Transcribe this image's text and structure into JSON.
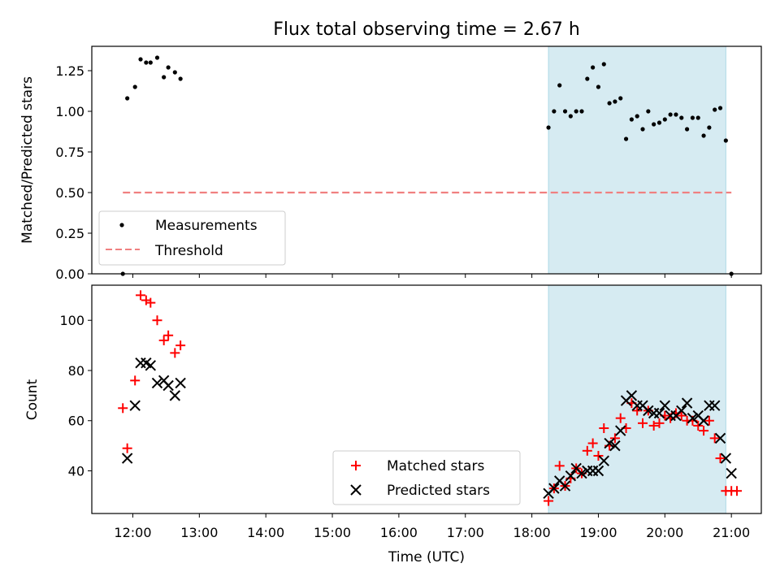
{
  "figure": {
    "title": "Flux total observing time = 2.67 h",
    "xlabel": "Time (UTC)"
  },
  "x_ticks": [
    "12:00",
    "13:00",
    "14:00",
    "15:00",
    "16:00",
    "17:00",
    "18:00",
    "19:00",
    "20:00",
    "21:00"
  ],
  "chart_data": [
    {
      "type": "scatter",
      "panel": "top",
      "ylabel": "Matched/Predicted stars",
      "xlim": [
        "11:23",
        "21:27"
      ],
      "ylim": [
        0,
        1.4
      ],
      "y_ticks": [
        "0.00",
        "0.25",
        "0.50",
        "0.75",
        "1.00",
        "1.25"
      ],
      "shaded_region": {
        "x": [
          "18:15",
          "20:55"
        ],
        "color": "#add8e6"
      },
      "legend": {
        "location": "lower-left"
      },
      "series": [
        {
          "name": "Measurements",
          "marker": "dot",
          "color": "#000000",
          "x": [
            "11:51",
            "11:55",
            "12:02",
            "12:07",
            "12:12",
            "12:16",
            "12:22",
            "12:28",
            "12:32",
            "12:38",
            "12:43",
            "18:15",
            "18:20",
            "18:25",
            "18:30",
            "18:35",
            "18:40",
            "18:45",
            "18:50",
            "18:55",
            "19:00",
            "19:05",
            "19:10",
            "19:15",
            "19:20",
            "19:25",
            "19:30",
            "19:35",
            "19:40",
            "19:45",
            "19:50",
            "19:55",
            "20:00",
            "20:05",
            "20:10",
            "20:15",
            "20:20",
            "20:25",
            "20:30",
            "20:35",
            "20:40",
            "20:45",
            "20:50",
            "20:55",
            "21:00"
          ],
          "y": [
            0.0,
            1.08,
            1.15,
            1.32,
            1.3,
            1.3,
            1.33,
            1.21,
            1.27,
            1.24,
            1.2,
            0.9,
            1.0,
            1.16,
            1.0,
            0.97,
            1.0,
            1.0,
            1.2,
            1.27,
            1.15,
            1.29,
            1.05,
            1.06,
            1.08,
            0.83,
            0.95,
            0.97,
            0.89,
            1.0,
            0.92,
            0.93,
            0.95,
            0.98,
            0.98,
            0.96,
            0.89,
            0.96,
            0.96,
            0.85,
            0.9,
            1.01,
            1.02,
            0.82,
            0.0
          ]
        },
        {
          "name": "Threshold",
          "marker": "dashed-line",
          "color": "#f08080",
          "x": [
            "11:51",
            "21:00"
          ],
          "y": [
            0.5,
            0.5
          ]
        }
      ]
    },
    {
      "type": "scatter",
      "panel": "bottom",
      "ylabel": "Count",
      "xlim": [
        "11:23",
        "21:27"
      ],
      "ylim": [
        23,
        114
      ],
      "y_ticks": [
        "40",
        "60",
        "80",
        "100"
      ],
      "shaded_region": {
        "x": [
          "18:15",
          "20:55"
        ],
        "color": "#add8e6"
      },
      "legend": {
        "location": "lower-center"
      },
      "series": [
        {
          "name": "Matched stars",
          "marker": "plus",
          "color": "#ff0000",
          "x": [
            "11:51",
            "11:55",
            "12:02",
            "12:07",
            "12:12",
            "12:16",
            "12:22",
            "12:28",
            "12:32",
            "12:38",
            "12:43",
            "18:15",
            "18:20",
            "18:25",
            "18:30",
            "18:35",
            "18:40",
            "18:45",
            "18:50",
            "18:55",
            "19:00",
            "19:05",
            "19:10",
            "19:15",
            "19:20",
            "19:25",
            "19:30",
            "19:35",
            "19:40",
            "19:45",
            "19:50",
            "19:55",
            "20:00",
            "20:05",
            "20:10",
            "20:15",
            "20:20",
            "20:25",
            "20:30",
            "20:35",
            "20:40",
            "20:45",
            "20:50",
            "20:55",
            "21:00",
            "21:05"
          ],
          "y": [
            65,
            49,
            76,
            110,
            108,
            107,
            100,
            92,
            94,
            87,
            90,
            28,
            33,
            42,
            34,
            37,
            41,
            39,
            48,
            51,
            46,
            57,
            50,
            53,
            61,
            57,
            67,
            64,
            59,
            64,
            58,
            59,
            62,
            61,
            63,
            62,
            60,
            60,
            58,
            56,
            60,
            53,
            45,
            32,
            32,
            32
          ]
        },
        {
          "name": "Predicted stars",
          "marker": "x",
          "color": "#000000",
          "x": [
            "11:55",
            "12:02",
            "12:07",
            "12:12",
            "12:16",
            "12:22",
            "12:28",
            "12:32",
            "12:38",
            "12:43",
            "18:15",
            "18:20",
            "18:25",
            "18:30",
            "18:35",
            "18:40",
            "18:45",
            "18:50",
            "18:55",
            "19:00",
            "19:05",
            "19:10",
            "19:15",
            "19:20",
            "19:25",
            "19:30",
            "19:35",
            "19:40",
            "19:45",
            "19:50",
            "19:55",
            "20:00",
            "20:05",
            "20:10",
            "20:15",
            "20:20",
            "20:25",
            "20:30",
            "20:35",
            "20:40",
            "20:45",
            "20:50",
            "20:55",
            "21:00"
          ],
          "y": [
            45,
            66,
            83,
            83,
            82,
            75,
            76,
            74,
            70,
            75,
            31,
            33,
            36,
            34,
            38,
            41,
            39,
            40,
            40,
            40,
            44,
            51,
            50,
            56,
            68,
            70,
            66,
            66,
            64,
            63,
            63,
            66,
            62,
            62,
            64,
            67,
            61,
            62,
            60,
            66,
            66,
            53,
            45,
            39
          ]
        }
      ]
    }
  ]
}
